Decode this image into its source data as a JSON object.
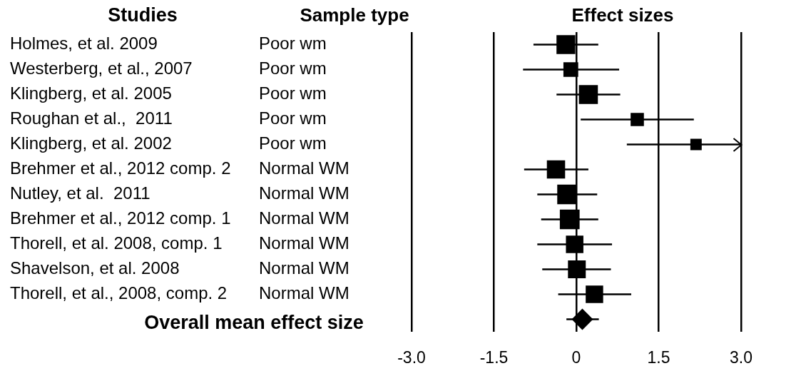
{
  "chart_data": {
    "type": "bubble",
    "orientation": "horizontal",
    "title": "Effect sizes",
    "ylabel": "Sample type",
    "annotations": [
      "Studies",
      "Overall mean effect size"
    ],
    "categories": [
      "Poor wm",
      "Poor wm",
      "Poor wm",
      "Poor wm",
      "Poor wm",
      "Normal WM",
      "Normal WM",
      "Normal WM",
      "Normal WM",
      "Normal WM",
      "Normal WM",
      null
    ],
    "y2_categories": [
      "Holmes, et al. 2009",
      "Westerberg, et al., 2007",
      "Klingberg, et al. 2005",
      "Roughan et al.,  2011",
      "Klingberg, et al. 2002",
      "Brehmer et al., 2012 comp. 2",
      "Nutley, et al.  2011",
      "Brehmer et al., 2012 comp. 1",
      "Thorell, et al. 2008, comp. 1",
      "Shavelson, et al. 2008",
      "Thorell, et al., 2008, comp. 2",
      null
    ],
    "xlim": [
      -3,
      3
    ],
    "xticks": [
      {
        "value": -3,
        "label": "-3.0"
      },
      -1.5,
      0,
      1.5,
      {
        "value": 3,
        "label": "3.0"
      }
    ],
    "grid": "x",
    "series": [
      {
        "type": "bubble",
        "marker": "square",
        "color": "#000000",
        "values": [
          -0.19,
          -0.1,
          0.22,
          1.11,
          2.18,
          -0.37,
          -0.17,
          -0.12,
          -0.03,
          0.01,
          0.33,
          null
        ],
        "errors": [
          [
            -0.78,
            0.4
          ],
          [
            -0.97,
            0.78
          ],
          [
            -0.36,
            0.8
          ],
          [
            0.08,
            2.14
          ],
          [
            0.92,
            3
          ],
          [
            -0.95,
            0.22
          ],
          [
            -0.71,
            0.38
          ],
          [
            -0.64,
            0.4
          ],
          [
            -0.71,
            0.65
          ],
          [
            -0.62,
            0.63
          ],
          [
            -0.33,
            1
          ],
          null
        ],
        "sizes": [
          0.9,
          0.56,
          0.92,
          0.45,
          0.33,
          0.85,
          0.97,
          1,
          0.78,
          0.81,
          0.78,
          null
        ]
      },
      {
        "type": "scatter",
        "marker": "diamond",
        "color": "#000000",
        "values": [
          null,
          null,
          null,
          null,
          null,
          null,
          null,
          null,
          null,
          null,
          null,
          0.11
        ],
        "errors": [
          null,
          null,
          null,
          null,
          null,
          null,
          null,
          null,
          null,
          null,
          null,
          [
            -0.18,
            0.41
          ]
        ]
      }
    ]
  }
}
